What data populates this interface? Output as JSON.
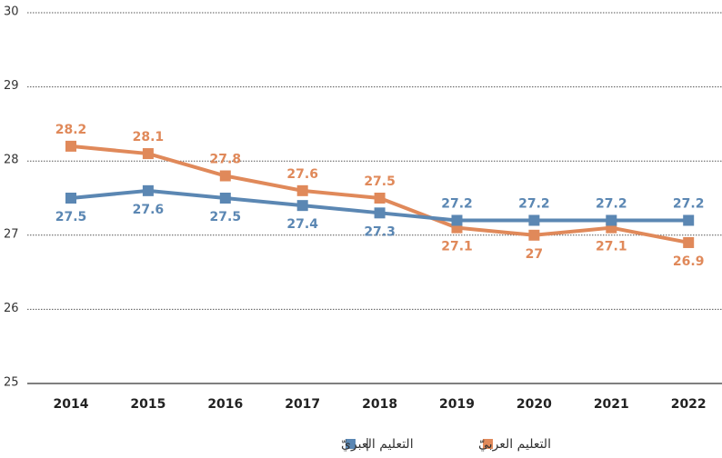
{
  "chart_data": {
    "type": "line",
    "categories": [
      "2014",
      "2015",
      "2016",
      "2017",
      "2018",
      "2019",
      "2020",
      "2021",
      "2022"
    ],
    "series": [
      {
        "name": "التعليم العربيّ",
        "color": "#e0895a",
        "values": [
          28.2,
          28.1,
          27.8,
          27.6,
          27.5,
          27.1,
          27,
          27.1,
          26.9
        ]
      },
      {
        "name": "التعليم العبريّ",
        "color": "#5b87b3",
        "values": [
          27.5,
          27.6,
          27.5,
          27.4,
          27.3,
          27.2,
          27.2,
          27.2,
          27.2
        ]
      }
    ],
    "legend_separator": "|",
    "ylim": [
      25,
      30
    ],
    "yticks": [
      25,
      26,
      27,
      28,
      29,
      30
    ],
    "grid": true
  }
}
